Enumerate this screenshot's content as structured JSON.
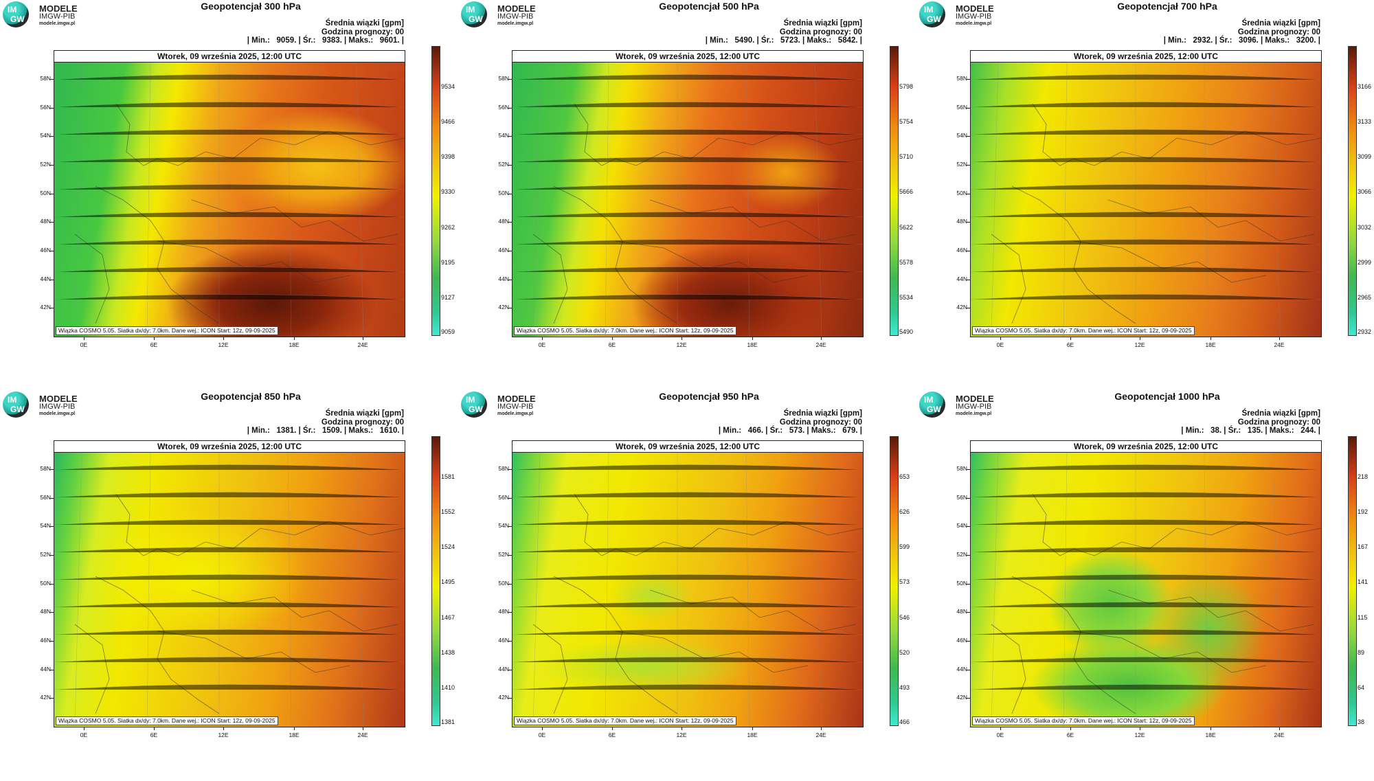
{
  "header": {
    "logo_title": "MODELE",
    "logo_sub": "IMGW-PIB",
    "logo_url": "modele.imgw.pl",
    "logo_im": "IM",
    "logo_gw": "GW"
  },
  "common": {
    "legend_title": "Średnia wiązki [gpm]",
    "forecast_hour": "Godzina prognozy: 00",
    "map_date": "Wtorek, 09 września 2025, 12:00 UTC",
    "footer": "Wiązka COSMO 5.05. Siatka dx/dy: 7.0km. Dane wej.: ICON Start: 12z, 09-09-2025",
    "lat_labels": [
      "58N",
      "56N",
      "54N",
      "52N",
      "50N",
      "48N",
      "46N",
      "44N",
      "42N"
    ],
    "lon_labels": [
      "0E",
      "6E",
      "12E",
      "18E",
      "24E"
    ]
  },
  "panels": [
    {
      "title": "Geopotencjał 300 hPa",
      "stats": "| Min.:   9059. | Śr.:   9383. | Maks.:   9601. |",
      "colorbar": [
        "9534",
        "9466",
        "9398",
        "9330",
        "9262",
        "9195",
        "9127",
        "9059"
      ]
    },
    {
      "title": "Geopotencjał 500 hPa",
      "stats": "| Min.:   5490. | Śr.:   5723. | Maks.:   5842. |",
      "colorbar": [
        "5798",
        "5754",
        "5710",
        "5666",
        "5622",
        "5578",
        "5534",
        "5490"
      ]
    },
    {
      "title": "Geopotencjał 700 hPa",
      "stats": "| Min.:   2932. | Śr.:   3096. | Maks.:   3200. |",
      "colorbar": [
        "3166",
        "3133",
        "3099",
        "3066",
        "3032",
        "2999",
        "2965",
        "2932"
      ]
    },
    {
      "title": "Geopotencjał 850 hPa",
      "stats": "| Min.:   1381. | Śr.:   1509. | Maks.:   1610. |",
      "colorbar": [
        "1581",
        "1552",
        "1524",
        "1495",
        "1467",
        "1438",
        "1410",
        "1381"
      ]
    },
    {
      "title": "Geopotencjał 950 hPa",
      "stats": "| Min.:   466. | Śr.:   573. | Maks.:   679. |",
      "colorbar": [
        "653",
        "626",
        "599",
        "573",
        "546",
        "520",
        "493",
        "466"
      ]
    },
    {
      "title": "Geopotencjał 1000 hPa",
      "stats": "| Min.:   38. | Śr.:   135. | Maks.:   244. |",
      "colorbar": [
        "218",
        "192",
        "167",
        "141",
        "115",
        "89",
        "64",
        "38"
      ]
    }
  ],
  "colors": {
    "low": "#3ee0c0",
    "green": "#3cc03c",
    "yellow": "#f5f000",
    "orange": "#f08a10",
    "red": "#d8401a",
    "dark": "#5a1a0a"
  }
}
